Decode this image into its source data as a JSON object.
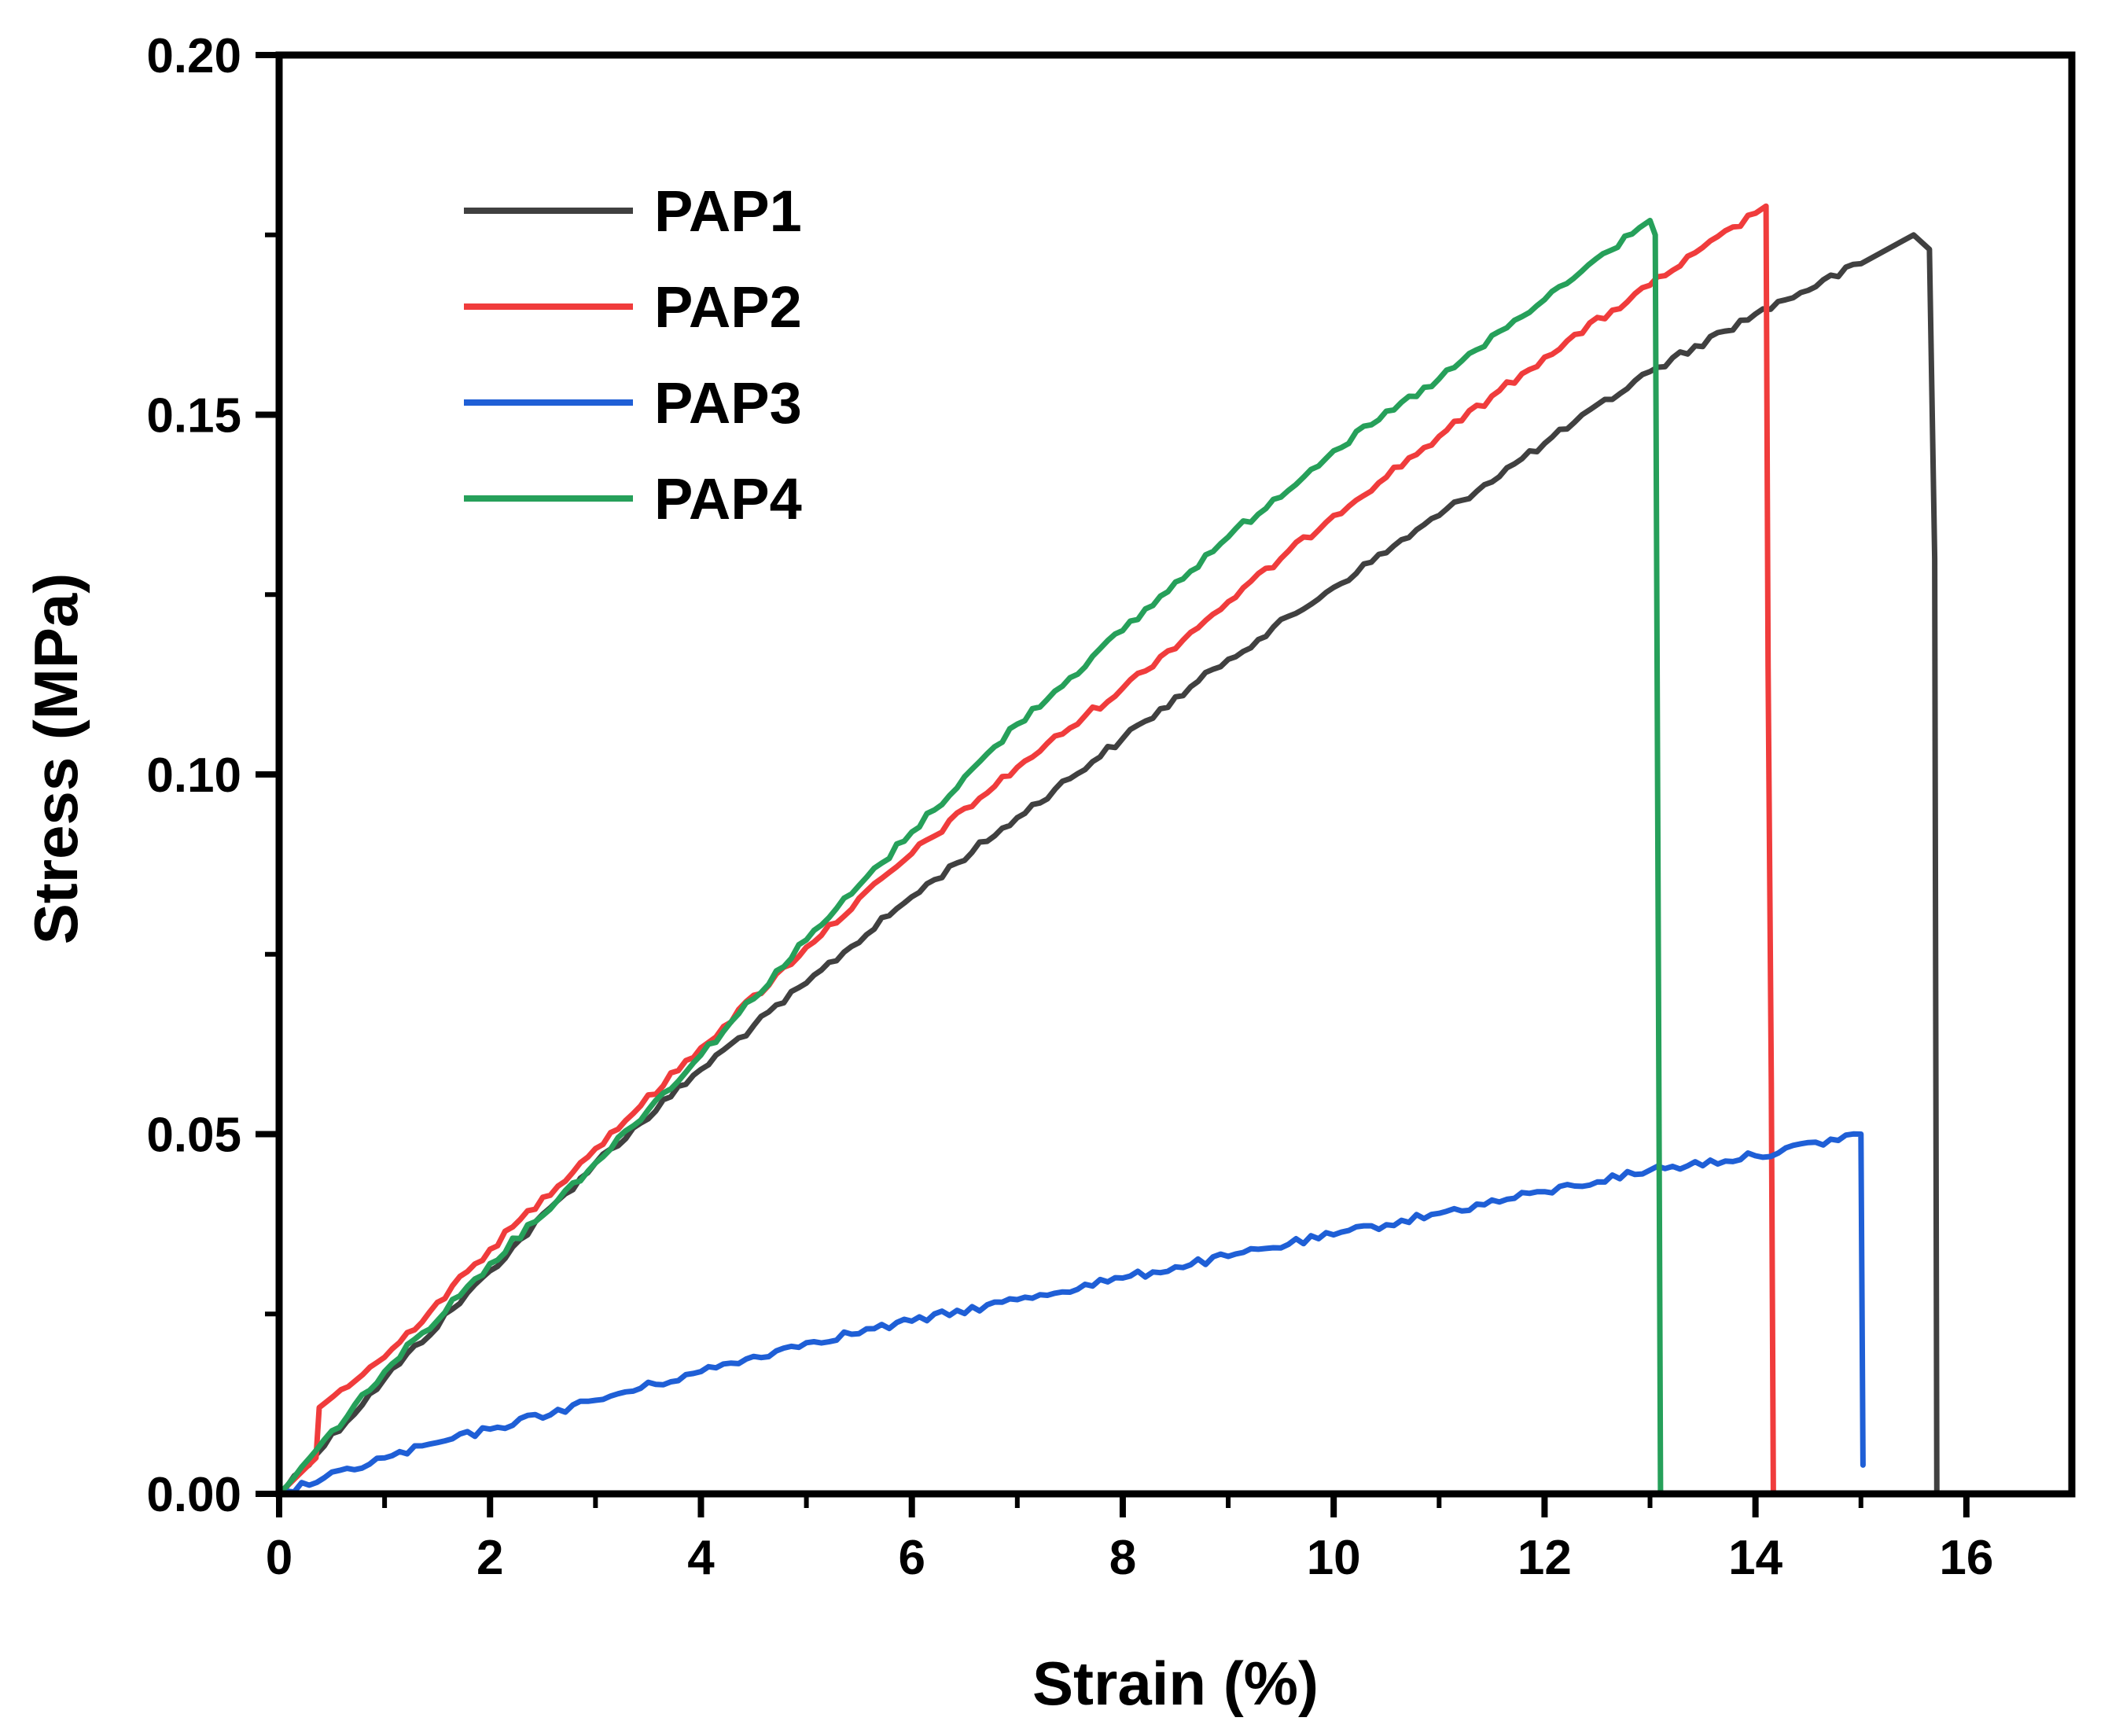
{
  "chart_data": {
    "type": "line",
    "title": "",
    "xlabel": "Strain (%)",
    "ylabel": "Stress (MPa)",
    "xlim": [
      0,
      17
    ],
    "ylim": [
      0,
      0.2
    ],
    "xticks": [
      0,
      2,
      4,
      6,
      8,
      10,
      12,
      14,
      16
    ],
    "xtick_labels": [
      "0",
      "2",
      "4",
      "6",
      "8",
      "10",
      "12",
      "14",
      "16"
    ],
    "yticks": [
      0,
      0.05,
      0.1,
      0.15,
      0.2
    ],
    "ytick_labels": [
      "0.00",
      "0.05",
      "0.10",
      "0.15",
      "0.20"
    ],
    "grid": false,
    "legend_position": "top-left",
    "series": [
      {
        "name": "PAP1",
        "color": "#404040",
        "points": [
          [
            0,
            0
          ],
          [
            1,
            0.016
          ],
          [
            2,
            0.031
          ],
          [
            3,
            0.046
          ],
          [
            4,
            0.059
          ],
          [
            5,
            0.071
          ],
          [
            6,
            0.083
          ],
          [
            7,
            0.094
          ],
          [
            8,
            0.105
          ],
          [
            9,
            0.116
          ],
          [
            10,
            0.126
          ],
          [
            11,
            0.136
          ],
          [
            12,
            0.146
          ],
          [
            13,
            0.156
          ],
          [
            14,
            0.164
          ],
          [
            15,
            0.171
          ],
          [
            15.5,
            0.175
          ],
          [
            15.65,
            0.173
          ],
          [
            15.7,
            0.13
          ],
          [
            15.72,
            0
          ]
        ]
      },
      {
        "name": "PAP2",
        "color": "#f03c3c",
        "points": [
          [
            0,
            0
          ],
          [
            0.35,
            0.005
          ],
          [
            0.38,
            0.012
          ],
          [
            1,
            0.019
          ],
          [
            2,
            0.034
          ],
          [
            3,
            0.048
          ],
          [
            4,
            0.062
          ],
          [
            5,
            0.076
          ],
          [
            6,
            0.089
          ],
          [
            7,
            0.101
          ],
          [
            8,
            0.112
          ],
          [
            9,
            0.124
          ],
          [
            10,
            0.136
          ],
          [
            11,
            0.147
          ],
          [
            12,
            0.158
          ],
          [
            13,
            0.168
          ],
          [
            14,
            0.178
          ],
          [
            14.1,
            0.179
          ],
          [
            14.12,
            0.115
          ],
          [
            14.15,
            0.057
          ],
          [
            14.17,
            0
          ]
        ]
      },
      {
        "name": "PAP3",
        "color": "#1f5fd6",
        "points": [
          [
            0,
            0
          ],
          [
            1,
            0.005
          ],
          [
            2,
            0.009
          ],
          [
            3,
            0.013
          ],
          [
            4,
            0.017
          ],
          [
            5,
            0.021
          ],
          [
            6,
            0.024
          ],
          [
            7,
            0.027
          ],
          [
            8,
            0.03
          ],
          [
            9,
            0.033
          ],
          [
            10,
            0.036
          ],
          [
            11,
            0.039
          ],
          [
            12,
            0.042
          ],
          [
            13,
            0.045
          ],
          [
            14,
            0.047
          ],
          [
            15,
            0.05
          ],
          [
            15.02,
            0.004
          ]
        ]
      },
      {
        "name": "PAP4",
        "color": "#26a05a",
        "points": [
          [
            0,
            0
          ],
          [
            1,
            0.017
          ],
          [
            2,
            0.032
          ],
          [
            3,
            0.046
          ],
          [
            4,
            0.061
          ],
          [
            5,
            0.077
          ],
          [
            6,
            0.092
          ],
          [
            7,
            0.107
          ],
          [
            8,
            0.12
          ],
          [
            9,
            0.133
          ],
          [
            10,
            0.145
          ],
          [
            11,
            0.155
          ],
          [
            12,
            0.166
          ],
          [
            12.9,
            0.176
          ],
          [
            13,
            0.177
          ],
          [
            13.05,
            0.175
          ],
          [
            13.08,
            0.07
          ],
          [
            13.1,
            0
          ]
        ]
      }
    ]
  }
}
